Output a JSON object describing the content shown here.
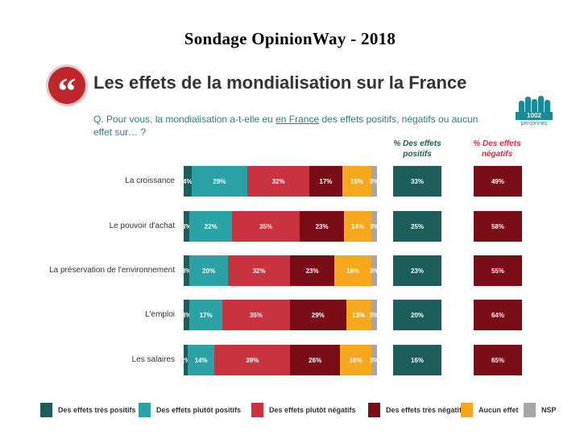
{
  "header": {
    "title": "Sondage OpinionWay - 2018",
    "quote_glyph": "“",
    "slide_title": "Les effets de la mondialisation sur la France",
    "question_before": "Q. Pour vous, la mondialisation a-t-elle eu ",
    "question_underlined": "en France",
    "question_after": " des effets positifs, négatifs ou aucun effet sur… ?",
    "panel_count": "1002",
    "panel_unit": "personnes"
  },
  "columns": {
    "positive_header": "% Des effets positifs",
    "negative_header": "% Des effets négatifs"
  },
  "colors": {
    "tres_positifs": "#1d5e5c",
    "plutot_positifs": "#2ba3a6",
    "plutot_negatifs": "#c9323f",
    "tres_negatifs": "#7a0c18",
    "aucun_effet": "#f5a81c",
    "nsp": "#a6a6a6",
    "positive_box": "#1d5e5c",
    "negative_box": "#7a0c18",
    "positive_header": "#1d5e5c",
    "negative_header": "#c9323f"
  },
  "chart_data": {
    "type": "bar",
    "orientation": "horizontal",
    "stacked": true,
    "categories": [
      "La croissance",
      "Le pouvoir d'achat",
      "La préservation de l'environnement",
      "L'emploi",
      "Les salaires"
    ],
    "series": [
      {
        "name": "Des effets très positifs",
        "color_key": "tres_positifs",
        "values": [
          4,
          3,
          3,
          3,
          2
        ]
      },
      {
        "name": "Des effets plutôt positifs",
        "color_key": "plutot_positifs",
        "values": [
          29,
          22,
          20,
          17,
          14
        ]
      },
      {
        "name": "Des effets plutôt négatifs",
        "color_key": "plutot_negatifs",
        "values": [
          32,
          35,
          32,
          35,
          39
        ]
      },
      {
        "name": "Des effets très négatifs",
        "color_key": "tres_negatifs",
        "values": [
          17,
          23,
          23,
          29,
          26
        ]
      },
      {
        "name": "Aucun effet",
        "color_key": "aucun_effet",
        "values": [
          15,
          14,
          19,
          13,
          16
        ]
      },
      {
        "name": "NSP",
        "color_key": "nsp",
        "values": [
          3,
          3,
          3,
          3,
          3
        ]
      }
    ],
    "positive_totals": [
      33,
      25,
      23,
      20,
      16
    ],
    "negative_totals": [
      49,
      58,
      55,
      64,
      65
    ],
    "unit": "%",
    "legend_position": "bottom"
  }
}
